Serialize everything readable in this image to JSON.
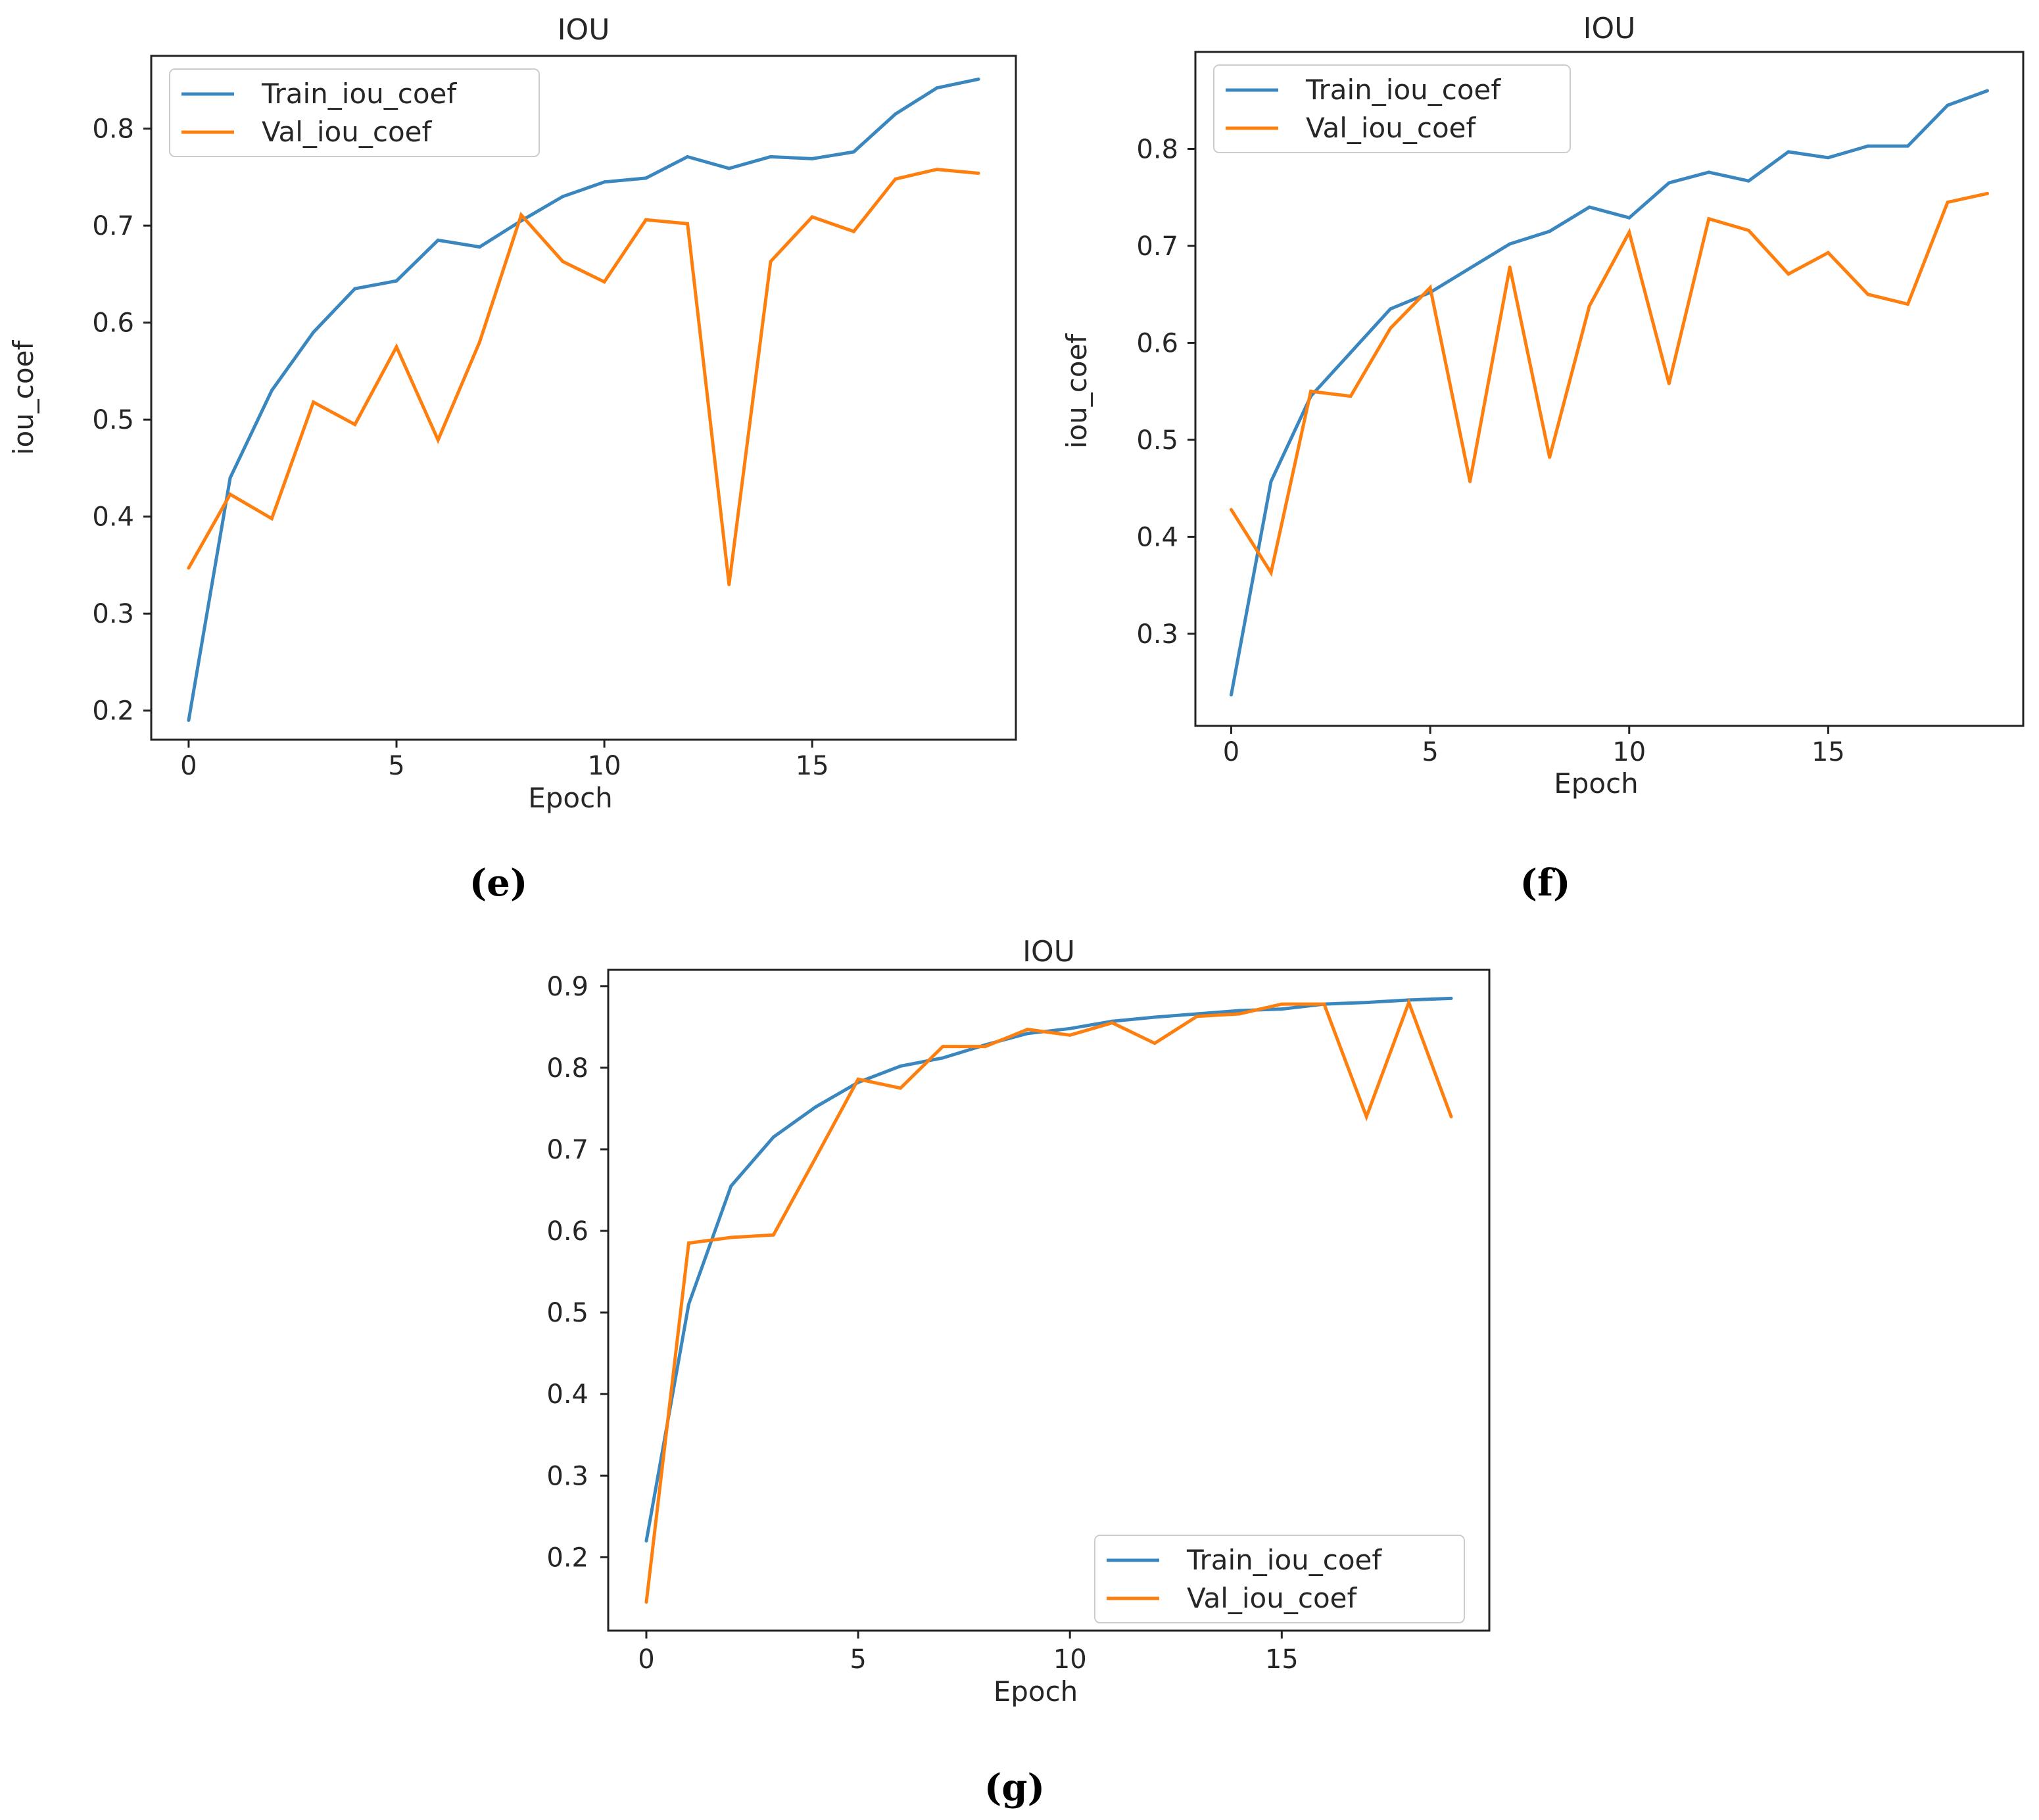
{
  "colors": {
    "train": "#3a87c0",
    "val": "#ff7f0e",
    "axis": "#222222",
    "text": "#262626"
  },
  "panels": [
    {
      "caption": "(e)"
    },
    {
      "caption": "(f)"
    },
    {
      "caption": "(g)"
    }
  ],
  "chart_data": [
    {
      "type": "line",
      "title": "IOU",
      "xlabel": "Epoch",
      "ylabel": "iou_coef",
      "xlim": [
        -0.9,
        19.9
      ],
      "ylim": [
        0.17,
        0.875
      ],
      "xticks": [
        0,
        5,
        10,
        15
      ],
      "xtick_labels": [
        "0",
        "5",
        "10",
        "15"
      ],
      "yticks": [
        0.2,
        0.3,
        0.4,
        0.5,
        0.6,
        0.7,
        0.8
      ],
      "ytick_labels": [
        "0.2",
        "0.3",
        "0.4",
        "0.5",
        "0.6",
        "0.7",
        "0.8"
      ],
      "legend": "top-left",
      "x": [
        0,
        1,
        2,
        3,
        4,
        5,
        6,
        7,
        8,
        9,
        10,
        11,
        12,
        13,
        14,
        15,
        16,
        17,
        18,
        19
      ],
      "series": [
        {
          "name": "Train_iou_coef",
          "values": [
            0.19,
            0.44,
            0.53,
            0.59,
            0.635,
            0.643,
            0.685,
            0.678,
            0.705,
            0.73,
            0.745,
            0.749,
            0.771,
            0.759,
            0.771,
            0.769,
            0.776,
            0.815,
            0.842,
            0.851
          ]
        },
        {
          "name": "Val_iou_coef",
          "values": [
            0.347,
            0.423,
            0.398,
            0.518,
            0.495,
            0.575,
            0.479,
            0.58,
            0.711,
            0.663,
            0.642,
            0.706,
            0.702,
            0.33,
            0.663,
            0.709,
            0.694,
            0.748,
            0.758,
            0.754
          ]
        }
      ]
    },
    {
      "type": "line",
      "title": "IOU",
      "xlabel": "Epoch",
      "ylabel": "iou_coef",
      "xlim": [
        -0.9,
        19.9
      ],
      "ylim": [
        0.205,
        0.9
      ],
      "xticks": [
        0,
        5,
        10,
        15
      ],
      "xtick_labels": [
        "0",
        "5",
        "10",
        "15"
      ],
      "yticks": [
        0.3,
        0.4,
        0.5,
        0.6,
        0.7,
        0.8
      ],
      "ytick_labels": [
        "0.3",
        "0.4",
        "0.5",
        "0.6",
        "0.7",
        "0.8"
      ],
      "legend": "top-left",
      "x": [
        0,
        1,
        2,
        3,
        4,
        5,
        6,
        7,
        8,
        9,
        10,
        11,
        12,
        13,
        14,
        15,
        16,
        17,
        18,
        19
      ],
      "series": [
        {
          "name": "Train_iou_coef",
          "values": [
            0.237,
            0.457,
            0.545,
            0.59,
            0.635,
            0.652,
            0.677,
            0.702,
            0.715,
            0.74,
            0.729,
            0.765,
            0.776,
            0.767,
            0.797,
            0.791,
            0.803,
            0.803,
            0.845,
            0.86
          ]
        },
        {
          "name": "Val_iou_coef",
          "values": [
            0.428,
            0.363,
            0.55,
            0.545,
            0.615,
            0.657,
            0.457,
            0.678,
            0.482,
            0.638,
            0.714,
            0.558,
            0.728,
            0.716,
            0.671,
            0.693,
            0.65,
            0.64,
            0.745,
            0.754
          ]
        }
      ]
    },
    {
      "type": "line",
      "title": "IOU",
      "xlabel": "Epoch",
      "ylabel": "",
      "xlim": [
        -0.9,
        19.9
      ],
      "ylim": [
        0.11,
        0.92
      ],
      "xticks": [
        0,
        5,
        10,
        15
      ],
      "xtick_labels": [
        "0",
        "5",
        "10",
        "15"
      ],
      "yticks": [
        0.2,
        0.3,
        0.4,
        0.5,
        0.6,
        0.7,
        0.8,
        0.9
      ],
      "ytick_labels": [
        "0.2",
        "0.3",
        "0.4",
        "0.5",
        "0.6",
        "0.7",
        "0.8",
        "0.9"
      ],
      "legend": "bottom-right",
      "x": [
        0,
        1,
        2,
        3,
        4,
        5,
        6,
        7,
        8,
        9,
        10,
        11,
        12,
        13,
        14,
        15,
        16,
        17,
        18,
        19
      ],
      "series": [
        {
          "name": "Train_iou_coef",
          "values": [
            0.22,
            0.51,
            0.655,
            0.715,
            0.752,
            0.782,
            0.802,
            0.812,
            0.828,
            0.842,
            0.848,
            0.857,
            0.862,
            0.866,
            0.87,
            0.872,
            0.878,
            0.88,
            0.883,
            0.885
          ]
        },
        {
          "name": "Val_iou_coef",
          "values": [
            0.145,
            0.585,
            0.592,
            0.595,
            0.69,
            0.786,
            0.775,
            0.826,
            0.826,
            0.847,
            0.84,
            0.855,
            0.83,
            0.863,
            0.866,
            0.878,
            0.878,
            0.74,
            0.88,
            0.74
          ]
        }
      ]
    }
  ]
}
